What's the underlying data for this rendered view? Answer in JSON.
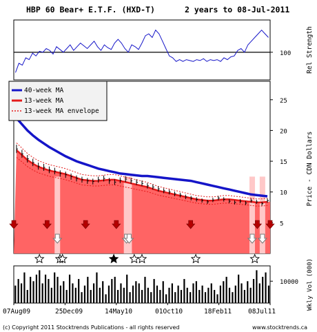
{
  "header": {
    "title": "HBP 60 Bear+ E.T.F. (HXD-T)",
    "period": "2 years to 08-Jul-2011"
  },
  "chart_data": {
    "type": "line",
    "x_ticks": [
      "07Aug09",
      "25Dec09",
      "14May10",
      "01Oct10",
      "18Feb11",
      "08Jul11"
    ],
    "rel_strength": {
      "ylabel": "Rel Strength",
      "y_ticks": [
        100
      ],
      "reference": 100,
      "values": [
        78,
        88,
        86,
        94,
        92,
        99,
        96,
        101,
        100,
        104,
        102,
        98,
        106,
        103,
        100,
        104,
        108,
        102,
        106,
        110,
        107,
        104,
        108,
        112,
        106,
        102,
        108,
        105,
        103,
        110,
        114,
        110,
        104,
        100,
        108,
        106,
        103,
        110,
        118,
        120,
        116,
        124,
        120,
        112,
        104,
        96,
        94,
        90,
        92,
        90,
        92,
        91,
        90,
        92,
        91,
        93,
        90,
        92,
        91,
        92,
        90,
        94,
        92,
        95,
        96,
        102,
        104,
        100,
        108,
        112,
        116,
        120,
        124,
        120,
        116
      ]
    },
    "price": {
      "ylabel": "Price - CDN Dollars",
      "y_ticks": [
        5,
        10,
        15,
        20,
        25
      ],
      "ylim": [
        0,
        28
      ],
      "legend": [
        "40-week MA",
        "13-week MA",
        "13-week MA envelope"
      ],
      "ma40": [
        22.0,
        21.0,
        20.0,
        19.2,
        18.5,
        17.9,
        17.3,
        16.8,
        16.3,
        15.8,
        15.4,
        15.0,
        14.7,
        14.4,
        14.1,
        13.8,
        13.6,
        13.4,
        13.2,
        13.0,
        12.9,
        12.8,
        12.7,
        12.6,
        12.6,
        12.5,
        12.4,
        12.3,
        12.2,
        12.1,
        12.0,
        11.9,
        11.8,
        11.6,
        11.4,
        11.2,
        11.0,
        10.8,
        10.6,
        10.4,
        10.2,
        10.0,
        9.8,
        9.6,
        9.5,
        9.4,
        9.3
      ],
      "ma13": [
        16.8,
        16.0,
        15.2,
        14.6,
        14.1,
        13.8,
        13.5,
        13.3,
        13.1,
        12.9,
        12.6,
        12.3,
        12.0,
        11.9,
        11.8,
        11.8,
        11.9,
        12.0,
        12.0,
        11.8,
        11.6,
        11.4,
        11.2,
        11.0,
        10.8,
        10.5,
        10.2,
        10.0,
        9.8,
        9.6,
        9.4,
        9.2,
        9.0,
        8.8,
        8.7,
        8.6,
        8.6,
        8.7,
        8.8,
        8.8,
        8.7,
        8.6,
        8.5,
        8.4,
        8.3,
        8.3,
        8.4
      ],
      "close": [
        17.0,
        16.2,
        15.4,
        14.8,
        14.2,
        14.0,
        13.6,
        13.4,
        13.0,
        12.8,
        12.5,
        12.2,
        12.0,
        11.8,
        11.7,
        12.0,
        12.2,
        11.8,
        11.6,
        11.9,
        12.1,
        11.8,
        11.6,
        11.4,
        11.0,
        10.8,
        10.5,
        10.2,
        10.0,
        9.7,
        9.5,
        9.2,
        9.0,
        8.8,
        8.6,
        8.4,
        8.7,
        9.0,
        8.8,
        8.5,
        8.3,
        8.5,
        8.2,
        8.6,
        8.4,
        8.1,
        8.6
      ],
      "sell_signals": [
        "07Aug09",
        "06Nov09",
        "19Feb10",
        "14May10",
        "03Dec10",
        "03Jun11",
        "08Jul11"
      ],
      "buy_signals": [
        "04Dec09",
        "11Jun10",
        "18Jun10",
        "20May11",
        "17Jun11"
      ],
      "stars": [
        {
          "x": "16Oct09",
          "filled": false
        },
        {
          "x": "11Dec09",
          "filled": false
        },
        {
          "x": "18Dec09",
          "filled": false
        },
        {
          "x": "07May10",
          "filled": true
        },
        {
          "x": "02Jul10",
          "filled": false
        },
        {
          "x": "23Jul10",
          "filled": false
        },
        {
          "x": "17Dec10",
          "filled": false
        },
        {
          "x": "27May11",
          "filled": false
        }
      ]
    },
    "volume": {
      "ylabel": "Wkly Vol (000)",
      "y_ticks": [
        10000
      ],
      "values": [
        8000,
        11000,
        9000,
        14000,
        6000,
        12000,
        10000,
        13000,
        15000,
        9000,
        13000,
        11000,
        7000,
        14000,
        12000,
        8000,
        10000,
        6000,
        13000,
        9000,
        7000,
        11000,
        5000,
        8000,
        12000,
        6000,
        9000,
        14000,
        7000,
        10000,
        4000,
        8000,
        11000,
        12000,
        6000,
        9000,
        7000,
        13000,
        5000,
        8000,
        10000,
        9000,
        6000,
        12000,
        7000,
        5000,
        11000,
        8000,
        6000,
        10000,
        4000,
        7000,
        9000,
        5000,
        8000,
        6000,
        11000,
        7000,
        5000,
        9000,
        10000,
        6000,
        8000,
        5000,
        7000,
        9000,
        6000,
        4000,
        8000,
        10000,
        12000,
        7000,
        5000,
        8000,
        13000,
        9000,
        6000,
        10000,
        7000,
        11000,
        15000,
        9000,
        12000,
        14000,
        8000
      ]
    }
  },
  "footer": {
    "copyright": "(c) Copyright 2011 Stocktrends Publications - all rights reserved",
    "website": "www.stocktrends.ca"
  }
}
